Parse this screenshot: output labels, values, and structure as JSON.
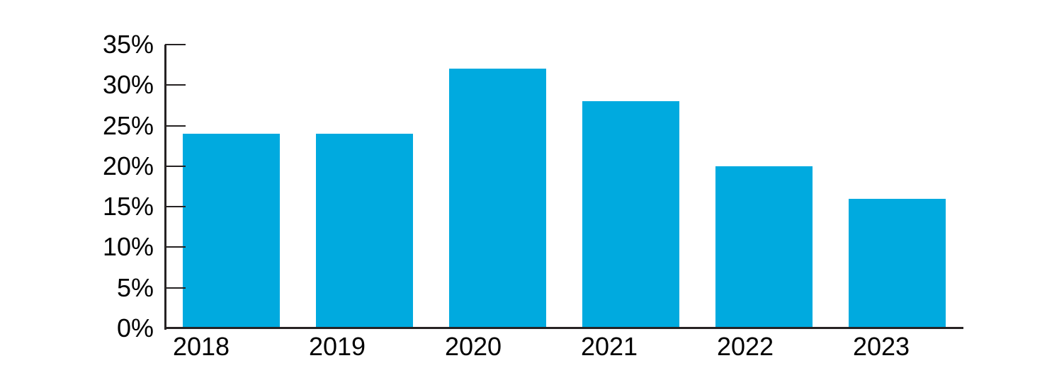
{
  "chart_data": {
    "type": "bar",
    "title": "",
    "xlabel": "",
    "ylabel": "",
    "categories": [
      "2018",
      "2019",
      "2020",
      "2021",
      "2022",
      "2023"
    ],
    "values": [
      24,
      24,
      32,
      28,
      20,
      16
    ],
    "unit": "%",
    "ylim": [
      0,
      35
    ],
    "yticks": [
      0,
      5,
      10,
      15,
      20,
      25,
      30,
      35
    ],
    "ytick_labels": [
      "0%",
      "5%",
      "10%",
      "15%",
      "20%",
      "25%",
      "30%",
      "35%"
    ],
    "grid": false,
    "legend": "none",
    "colors": {
      "bar": "#00AADF",
      "axis": "#262223",
      "text": "#000000",
      "background": "#FFFFFF"
    }
  }
}
